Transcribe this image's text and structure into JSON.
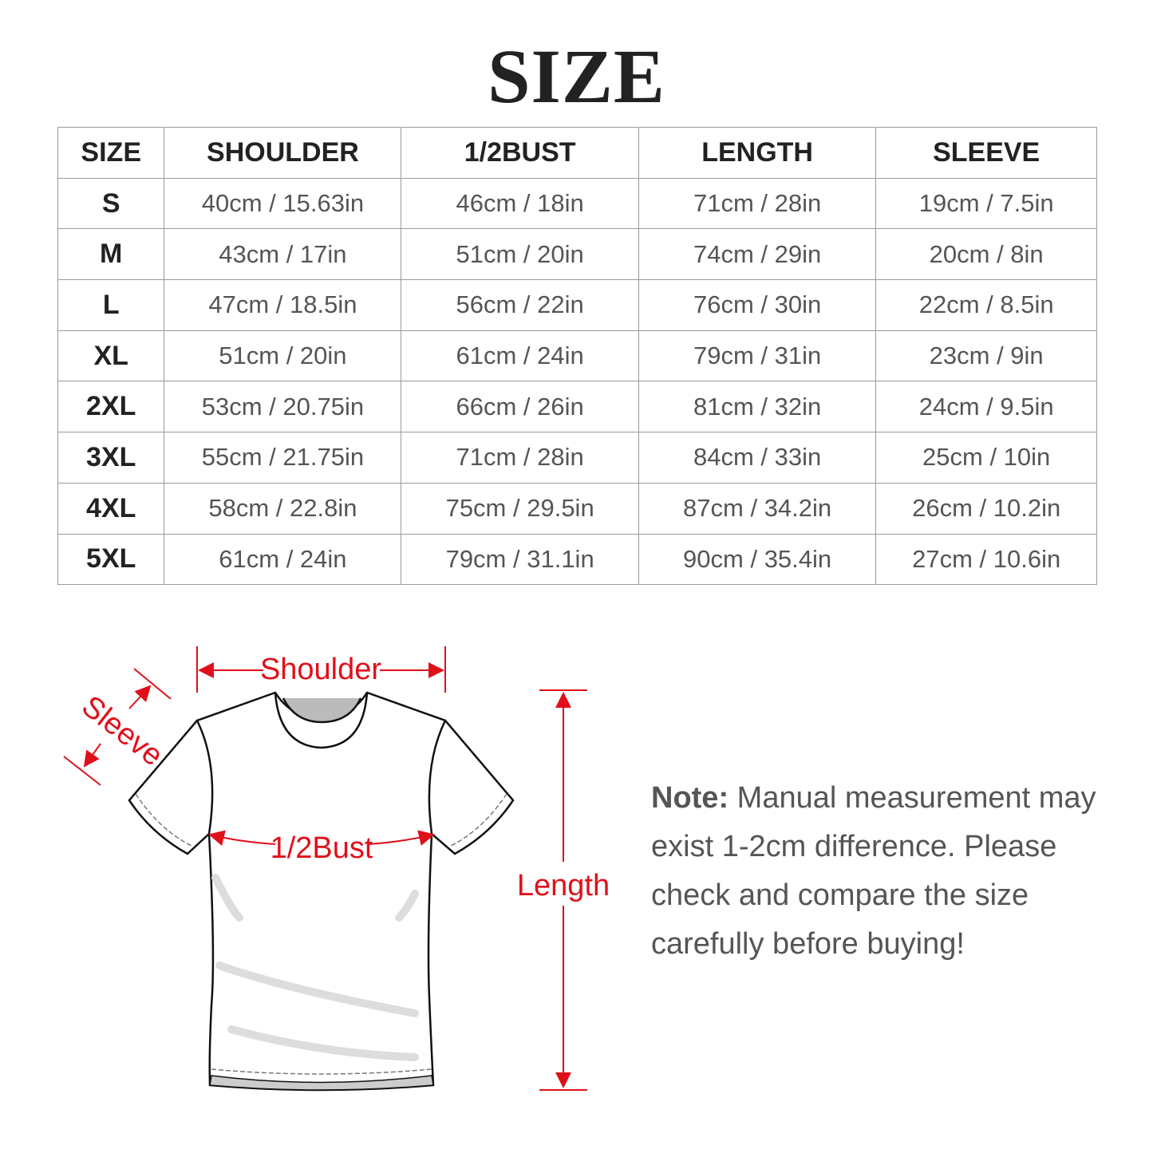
{
  "title": "SIZE",
  "table": {
    "headers": [
      "SIZE",
      "SHOULDER",
      "1/2BUST",
      "LENGTH",
      "SLEEVE"
    ],
    "rows": [
      [
        "S",
        "40cm / 15.63in",
        "46cm / 18in",
        "71cm / 28in",
        "19cm / 7.5in"
      ],
      [
        "M",
        "43cm / 17in",
        "51cm / 20in",
        "74cm / 29in",
        "20cm / 8in"
      ],
      [
        "L",
        "47cm / 18.5in",
        "56cm / 22in",
        "76cm / 30in",
        "22cm / 8.5in"
      ],
      [
        "XL",
        "51cm / 20in",
        "61cm / 24in",
        "79cm / 31in",
        "23cm / 9in"
      ],
      [
        "2XL",
        "53cm / 20.75in",
        "66cm / 26in",
        "81cm / 32in",
        "24cm / 9.5in"
      ],
      [
        "3XL",
        "55cm / 21.75in",
        "71cm / 28in",
        "84cm / 33in",
        "25cm / 10in"
      ],
      [
        "4XL",
        "58cm / 22.8in",
        "75cm / 29.5in",
        "87cm / 34.2in",
        "26cm / 10.2in"
      ],
      [
        "5XL",
        "61cm / 24in",
        "79cm / 31.1in",
        "90cm / 35.4in",
        "27cm / 10.6in"
      ]
    ]
  },
  "diagram": {
    "shoulder": "Shoulder",
    "sleeve": "Sleeve",
    "bust": "1/2Bust",
    "length": "Length",
    "accent_color": "#e0101a"
  },
  "note": {
    "label": "Note:",
    "text": " Manual measurement may exist 1-2cm difference. Please check and compare the size carefully before buying!"
  }
}
